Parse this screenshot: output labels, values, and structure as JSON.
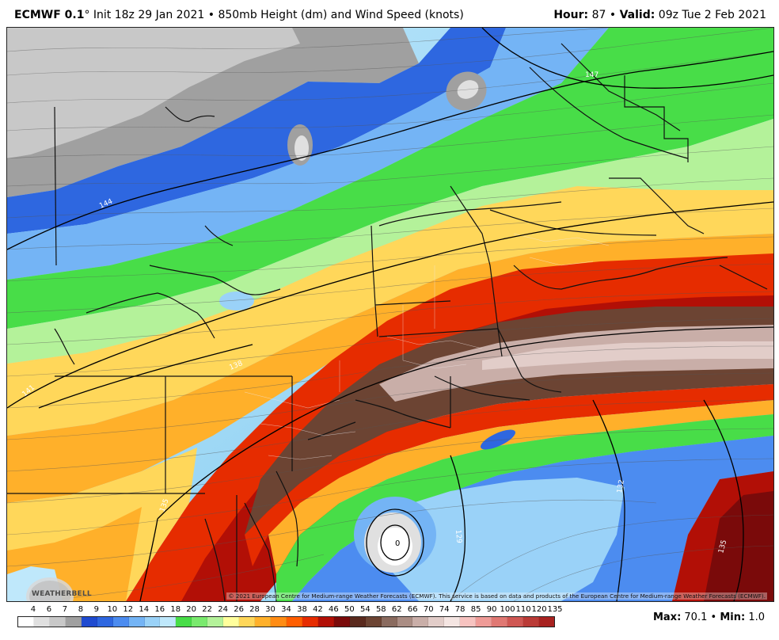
{
  "header": {
    "model": "ECMWF 0.1",
    "degree": "°",
    "init": "Init 18z 29 Jan 2021",
    "bullet": "•",
    "product": "850mb Height (dm) and Wind Speed (knots)",
    "hour_label": "Hour:",
    "hour_value": "87",
    "valid_label": "Valid:",
    "valid_value": "09z Tue 2 Feb 2021"
  },
  "map": {
    "contour_labels": [
      "147",
      "144",
      "141",
      "138",
      "135",
      "132",
      "129",
      "135",
      "0"
    ],
    "copyright": "© 2021 European Centre for Medium-range Weather Forecasts (ECMWF). This service is based on data and products of the European Centre for Medium-range Weather Forecasts (ECMWF).",
    "logo_text": "WEATHERBELL"
  },
  "legend": {
    "labels": [
      "4",
      "6",
      "7",
      "8",
      "9",
      "10",
      "12",
      "14",
      "16",
      "18",
      "20",
      "22",
      "24",
      "26",
      "28",
      "30",
      "34",
      "38",
      "42",
      "46",
      "50",
      "54",
      "58",
      "62",
      "66",
      "70",
      "74",
      "78",
      "85",
      "90",
      "100",
      "110",
      "120",
      "135"
    ],
    "colors": [
      "#ffffff",
      "#e0e0e0",
      "#c8c8c8",
      "#a0a0a0",
      "#1f4bd0",
      "#2e67e0",
      "#4c8cf0",
      "#74b4f5",
      "#9ad2f8",
      "#bfe8fb",
      "#48dd48",
      "#7aea6e",
      "#b4f29a",
      "#ffff9c",
      "#ffd75a",
      "#ffb02a",
      "#ff8c14",
      "#ff5e00",
      "#e62c00",
      "#b20f06",
      "#7a0a0a",
      "#5a2a1e",
      "#6c4433",
      "#8a6b5f",
      "#aa8d84",
      "#c9aea8",
      "#e2cdc9",
      "#f4e5e2",
      "#f7c3c0",
      "#ef9b97",
      "#e07873",
      "#cf5753",
      "#ba3b37",
      "#a82220"
    ]
  },
  "stats": {
    "max_label": "Max:",
    "max_value": "70.1",
    "min_label": "Min:",
    "min_value": "1.0",
    "bullet": "•"
  }
}
